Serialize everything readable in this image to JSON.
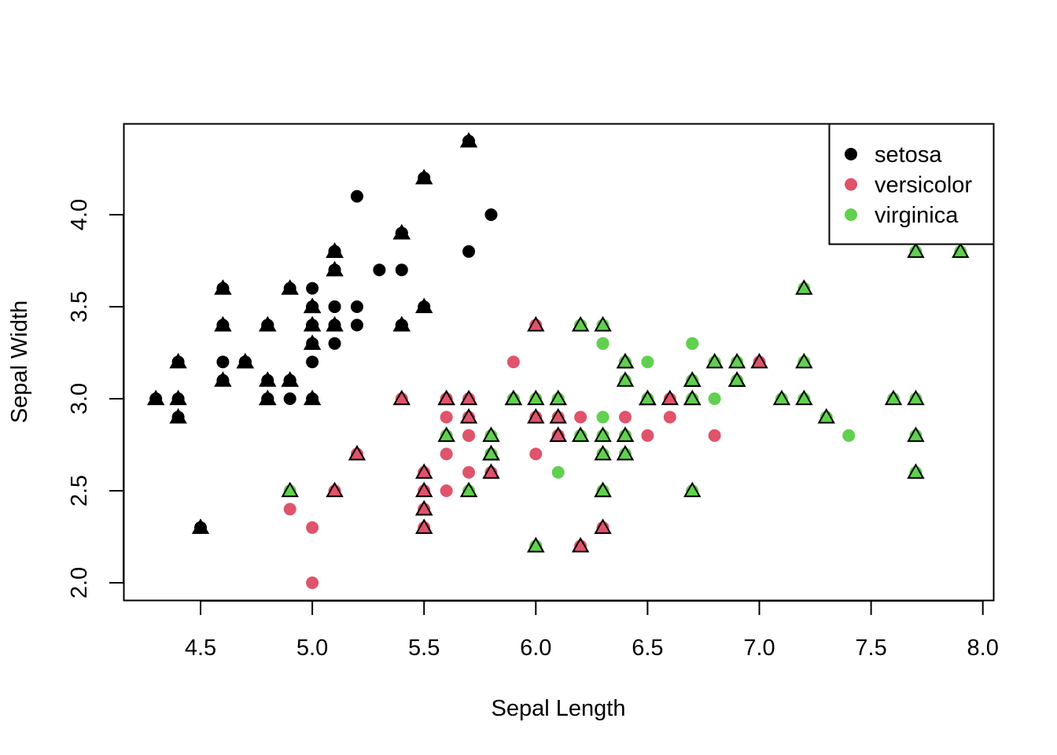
{
  "chart_data": {
    "type": "scatter",
    "title": "",
    "xlabel": "Sepal Length",
    "ylabel": "Sepal Width",
    "xlim": [
      4.3,
      7.9
    ],
    "ylim": [
      2.0,
      4.4
    ],
    "x_ticks": [
      "4.5",
      "5.0",
      "5.5",
      "6.0",
      "6.5",
      "7.0",
      "7.5",
      "8.0"
    ],
    "y_ticks": [
      "2.0",
      "2.5",
      "3.0",
      "3.5",
      "4.0"
    ],
    "grid": false,
    "legend_position": "top-right",
    "marker_note_keys": [
      "x",
      "y",
      "triangle"
    ],
    "series": [
      {
        "name": "setosa",
        "color": "#000000",
        "points": [
          [
            5.1,
            3.5,
            0
          ],
          [
            4.9,
            3.0,
            0
          ],
          [
            4.7,
            3.2,
            1
          ],
          [
            4.6,
            3.1,
            1
          ],
          [
            5.0,
            3.6,
            0
          ],
          [
            5.4,
            3.9,
            1
          ],
          [
            4.6,
            3.4,
            1
          ],
          [
            5.0,
            3.4,
            1
          ],
          [
            4.4,
            2.9,
            1
          ],
          [
            4.9,
            3.1,
            1
          ],
          [
            5.4,
            3.7,
            0
          ],
          [
            4.8,
            3.4,
            1
          ],
          [
            4.8,
            3.0,
            1
          ],
          [
            4.3,
            3.0,
            1
          ],
          [
            5.8,
            4.0,
            0
          ],
          [
            5.7,
            4.4,
            1
          ],
          [
            5.4,
            3.9,
            1
          ],
          [
            5.1,
            3.5,
            0
          ],
          [
            5.7,
            3.8,
            0
          ],
          [
            5.1,
            3.8,
            1
          ],
          [
            5.4,
            3.4,
            1
          ],
          [
            5.1,
            3.7,
            1
          ],
          [
            4.6,
            3.6,
            1
          ],
          [
            5.1,
            3.3,
            0
          ],
          [
            4.8,
            3.4,
            1
          ],
          [
            5.0,
            3.0,
            1
          ],
          [
            5.0,
            3.4,
            1
          ],
          [
            5.2,
            3.5,
            0
          ],
          [
            5.2,
            3.4,
            0
          ],
          [
            4.7,
            3.2,
            1
          ],
          [
            4.8,
            3.1,
            1
          ],
          [
            5.4,
            3.4,
            1
          ],
          [
            5.2,
            4.1,
            0
          ],
          [
            5.5,
            4.2,
            1
          ],
          [
            4.9,
            3.1,
            1
          ],
          [
            5.0,
            3.2,
            0
          ],
          [
            5.5,
            3.5,
            1
          ],
          [
            4.9,
            3.6,
            1
          ],
          [
            4.4,
            3.0,
            1
          ],
          [
            5.1,
            3.4,
            1
          ],
          [
            5.0,
            3.5,
            1
          ],
          [
            4.5,
            2.3,
            1
          ],
          [
            4.4,
            3.2,
            1
          ],
          [
            5.0,
            3.5,
            1
          ],
          [
            5.1,
            3.8,
            1
          ],
          [
            4.8,
            3.0,
            1
          ],
          [
            5.1,
            3.8,
            1
          ],
          [
            4.6,
            3.2,
            0
          ],
          [
            5.3,
            3.7,
            0
          ],
          [
            5.0,
            3.3,
            1
          ]
        ]
      },
      {
        "name": "versicolor",
        "color": "#DF536B",
        "points": [
          [
            7.0,
            3.2,
            1
          ],
          [
            6.4,
            3.2,
            1
          ],
          [
            6.9,
            3.1,
            1
          ],
          [
            5.5,
            2.3,
            1
          ],
          [
            6.5,
            2.8,
            0
          ],
          [
            5.7,
            2.8,
            0
          ],
          [
            6.3,
            3.3,
            0
          ],
          [
            4.9,
            2.4,
            0
          ],
          [
            6.6,
            2.9,
            0
          ],
          [
            5.2,
            2.7,
            1
          ],
          [
            5.0,
            2.0,
            0
          ],
          [
            5.9,
            3.0,
            1
          ],
          [
            6.0,
            2.2,
            1
          ],
          [
            6.1,
            2.9,
            1
          ],
          [
            5.6,
            2.9,
            0
          ],
          [
            6.7,
            3.1,
            1
          ],
          [
            5.6,
            3.0,
            1
          ],
          [
            5.8,
            2.7,
            1
          ],
          [
            6.2,
            2.2,
            1
          ],
          [
            5.6,
            2.5,
            0
          ],
          [
            5.9,
            3.2,
            0
          ],
          [
            6.1,
            2.8,
            1
          ],
          [
            6.3,
            2.5,
            1
          ],
          [
            6.1,
            2.8,
            1
          ],
          [
            6.4,
            2.9,
            0
          ],
          [
            6.6,
            3.0,
            1
          ],
          [
            6.8,
            2.8,
            0
          ],
          [
            6.7,
            3.0,
            1
          ],
          [
            6.0,
            2.9,
            1
          ],
          [
            5.7,
            2.6,
            0
          ],
          [
            5.5,
            2.4,
            1
          ],
          [
            5.5,
            2.4,
            1
          ],
          [
            5.8,
            2.7,
            1
          ],
          [
            6.0,
            2.7,
            0
          ],
          [
            5.4,
            3.0,
            1
          ],
          [
            6.0,
            3.4,
            1
          ],
          [
            6.7,
            3.1,
            1
          ],
          [
            6.3,
            2.3,
            1
          ],
          [
            5.6,
            3.0,
            1
          ],
          [
            5.5,
            2.5,
            1
          ],
          [
            5.5,
            2.6,
            1
          ],
          [
            6.1,
            3.0,
            1
          ],
          [
            5.8,
            2.6,
            1
          ],
          [
            5.0,
            2.3,
            0
          ],
          [
            5.6,
            2.7,
            0
          ],
          [
            5.7,
            3.0,
            1
          ],
          [
            5.7,
            2.9,
            1
          ],
          [
            6.2,
            2.9,
            0
          ],
          [
            5.1,
            2.5,
            1
          ],
          [
            5.7,
            2.8,
            0
          ]
        ]
      },
      {
        "name": "virginica",
        "color": "#61D04F",
        "points": [
          [
            6.3,
            3.3,
            0
          ],
          [
            5.8,
            2.7,
            1
          ],
          [
            7.1,
            3.0,
            1
          ],
          [
            6.3,
            2.9,
            0
          ],
          [
            6.5,
            3.0,
            1
          ],
          [
            7.6,
            3.0,
            1
          ],
          [
            4.9,
            2.5,
            1
          ],
          [
            7.3,
            2.9,
            1
          ],
          [
            6.7,
            2.5,
            1
          ],
          [
            7.2,
            3.6,
            1
          ],
          [
            6.5,
            3.2,
            0
          ],
          [
            6.4,
            2.7,
            1
          ],
          [
            6.8,
            3.0,
            0
          ],
          [
            5.7,
            2.5,
            1
          ],
          [
            5.8,
            2.8,
            1
          ],
          [
            6.4,
            3.2,
            1
          ],
          [
            6.5,
            3.0,
            1
          ],
          [
            7.7,
            3.8,
            1
          ],
          [
            7.7,
            2.6,
            1
          ],
          [
            6.0,
            2.2,
            1
          ],
          [
            6.9,
            3.2,
            1
          ],
          [
            5.6,
            2.8,
            1
          ],
          [
            7.7,
            2.8,
            1
          ],
          [
            6.3,
            2.7,
            1
          ],
          [
            6.7,
            3.3,
            0
          ],
          [
            7.2,
            3.2,
            1
          ],
          [
            6.2,
            2.8,
            1
          ],
          [
            6.1,
            3.0,
            1
          ],
          [
            6.4,
            2.8,
            1
          ],
          [
            7.2,
            3.0,
            1
          ],
          [
            7.4,
            2.8,
            0
          ],
          [
            7.9,
            3.8,
            1
          ],
          [
            6.4,
            2.8,
            1
          ],
          [
            6.3,
            2.8,
            1
          ],
          [
            6.1,
            2.6,
            0
          ],
          [
            7.7,
            3.0,
            1
          ],
          [
            6.3,
            3.4,
            1
          ],
          [
            6.4,
            3.1,
            1
          ],
          [
            6.0,
            3.0,
            1
          ],
          [
            6.9,
            3.1,
            1
          ],
          [
            6.7,
            3.1,
            1
          ],
          [
            6.9,
            3.1,
            1
          ],
          [
            5.8,
            2.7,
            1
          ],
          [
            6.8,
            3.2,
            1
          ],
          [
            6.7,
            3.3,
            0
          ],
          [
            6.7,
            3.0,
            1
          ],
          [
            6.3,
            2.5,
            1
          ],
          [
            6.5,
            3.0,
            1
          ],
          [
            6.2,
            3.4,
            1
          ],
          [
            5.9,
            3.0,
            1
          ]
        ]
      }
    ]
  }
}
